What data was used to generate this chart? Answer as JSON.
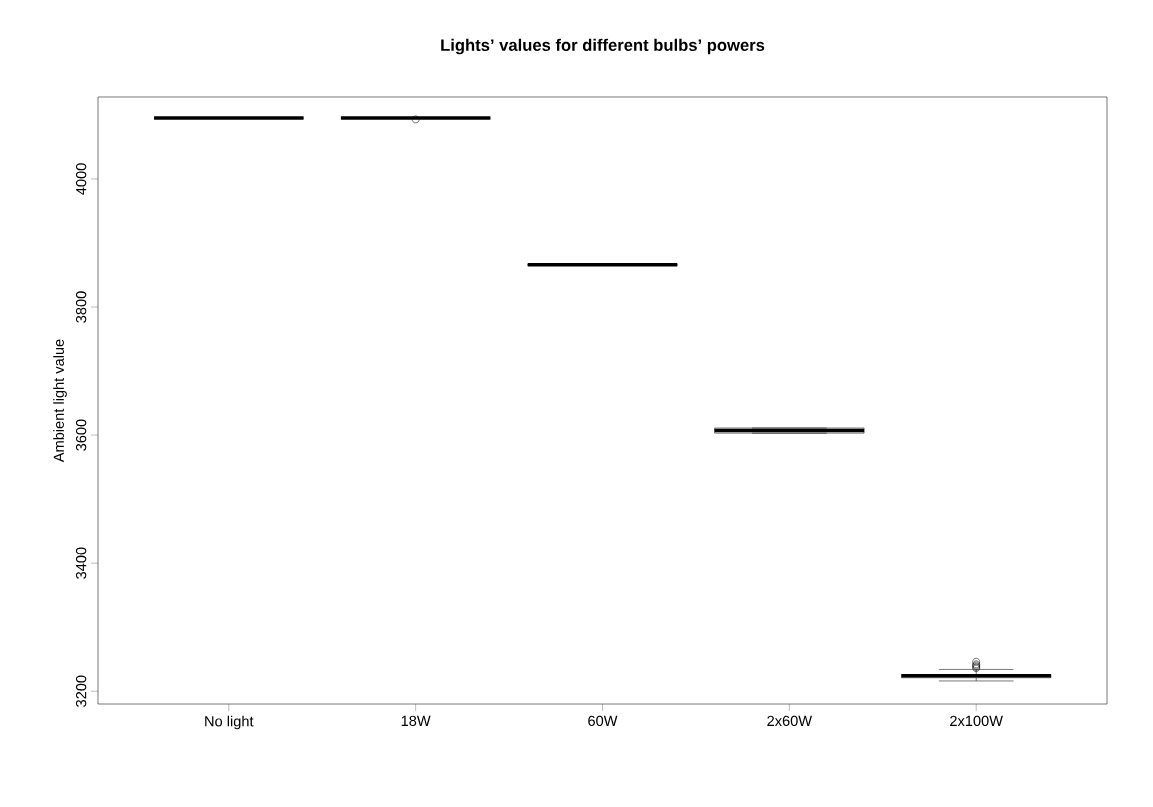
{
  "chart_data": {
    "type": "box",
    "title": "Lights’ values for different bulbs’ powers",
    "ylabel": "Ambient light value",
    "categories": [
      "No light",
      "18W",
      "60W",
      "2x60W",
      "2x100W"
    ],
    "boxes": [
      {
        "low": 4095,
        "q1": 4095,
        "median": 4095,
        "q3": 4095,
        "high": 4095
      },
      {
        "low": 4095,
        "q1": 4095,
        "median": 4095,
        "q3": 4095,
        "high": 4095,
        "outliers": [
          4093
        ]
      },
      {
        "low": 3865,
        "q1": 3865,
        "median": 3866,
        "q3": 3867,
        "high": 3867
      },
      {
        "low": 3603,
        "q1": 3603,
        "median": 3607,
        "q3": 3611,
        "high": 3611
      },
      {
        "low": 3216,
        "q1": 3221,
        "median": 3224,
        "q3": 3226,
        "high": 3234,
        "outliers": [
          3236,
          3238,
          3240,
          3242,
          3246
        ]
      }
    ],
    "ylim": [
      3180,
      4128
    ],
    "yticks": [
      3200,
      3400,
      3600,
      3800,
      4000
    ]
  }
}
